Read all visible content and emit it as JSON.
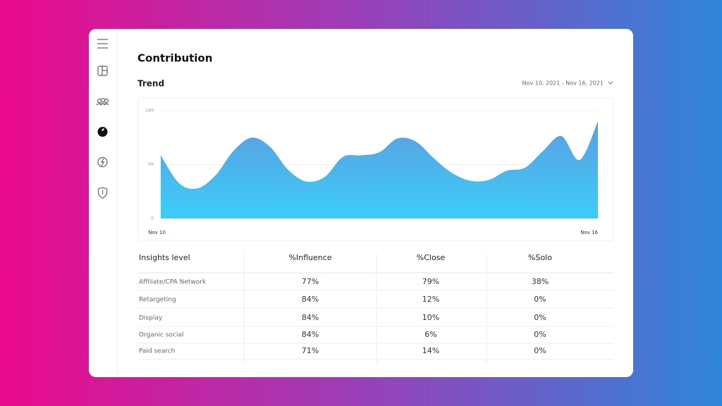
{
  "header": {
    "title": "Contribution"
  },
  "trend": {
    "title": "Trend",
    "date_range": "Nov 10, 2021 - Nov 16, 2021"
  },
  "chart_data": {
    "type": "area",
    "categories": [
      "Nov 10",
      null,
      null,
      null,
      null,
      null,
      null,
      null,
      null,
      null,
      null,
      null,
      null,
      null,
      null,
      null,
      null,
      null,
      null,
      null,
      null,
      null,
      null,
      null,
      "Nov 16"
    ],
    "values": [
      8200000,
      4600000,
      3900000,
      5600000,
      8800000,
      10500000,
      9300000,
      6300000,
      4800000,
      5400000,
      8000000,
      8200000,
      8600000,
      10400000,
      10000000,
      7800000,
      5900000,
      4900000,
      5000000,
      6200000,
      6600000,
      8800000,
      10700000,
      7600000,
      12600000
    ],
    "color": "#5b9fe0",
    "ylim": [
      0,
      14000000
    ],
    "yticks": [
      0,
      {
        "value": 7000000,
        "label": "7M"
      },
      {
        "value": 14000000,
        "label": "14M"
      }
    ],
    "grid": true
  },
  "table": {
    "columns": [
      "Insights level",
      "%Influence",
      "%Close",
      "%Solo"
    ],
    "rows": [
      [
        "Affiliate/CPA Network",
        "77%",
        "79%",
        "38%"
      ],
      [
        "Retargeting",
        "84%",
        "12%",
        "0%"
      ],
      [
        "Display",
        "84%",
        "10%",
        "0%"
      ],
      [
        "Organic social",
        "84%",
        "6%",
        "0%"
      ],
      [
        "Paid search",
        "71%",
        "14%",
        "0%"
      ]
    ]
  }
}
